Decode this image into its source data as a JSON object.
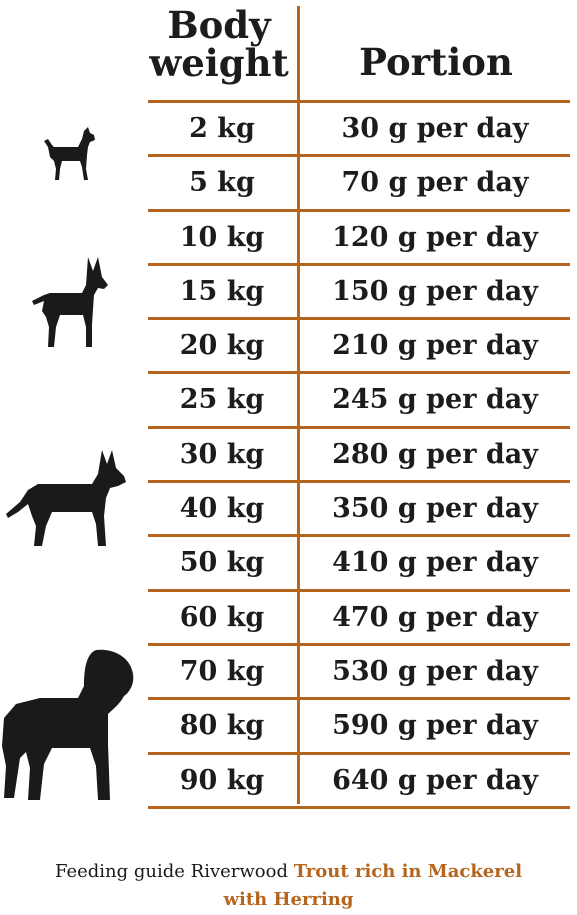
{
  "header": {
    "weight_line1": "Body",
    "weight_line2": "weight",
    "portion": "Portion"
  },
  "rows": [
    {
      "weight": "2 kg",
      "portion": "30 g per day"
    },
    {
      "weight": "5 kg",
      "portion": "70 g per day"
    },
    {
      "weight": "10 kg",
      "portion": "120 g per day"
    },
    {
      "weight": "15 kg",
      "portion": "150 g per day"
    },
    {
      "weight": "20 kg",
      "portion": "210 g per day"
    },
    {
      "weight": "25 kg",
      "portion": "245 g per day"
    },
    {
      "weight": "30 kg",
      "portion": "280 g per day"
    },
    {
      "weight": "40 kg",
      "portion": "350 g per day"
    },
    {
      "weight": "50 kg",
      "portion": "410 g per day"
    },
    {
      "weight": "60 kg",
      "portion": "470 g per day"
    },
    {
      "weight": "70 kg",
      "portion": "530 g per day"
    },
    {
      "weight": "80 kg",
      "portion": "590 g per day"
    },
    {
      "weight": "90 kg",
      "portion": "640 g per day"
    }
  ],
  "footer": {
    "prefix": "Feeding guide Riverwood ",
    "product_line1": "Trout rich in Mackerel",
    "product_line2": "with Herring"
  },
  "colors": {
    "accent": "#b5651d",
    "text": "#1c1c1c",
    "silhouette": "#1a1a1a"
  },
  "icons": [
    "small-dog-icon",
    "medium-dog-icon",
    "large-dog-icon",
    "giant-dog-icon"
  ]
}
